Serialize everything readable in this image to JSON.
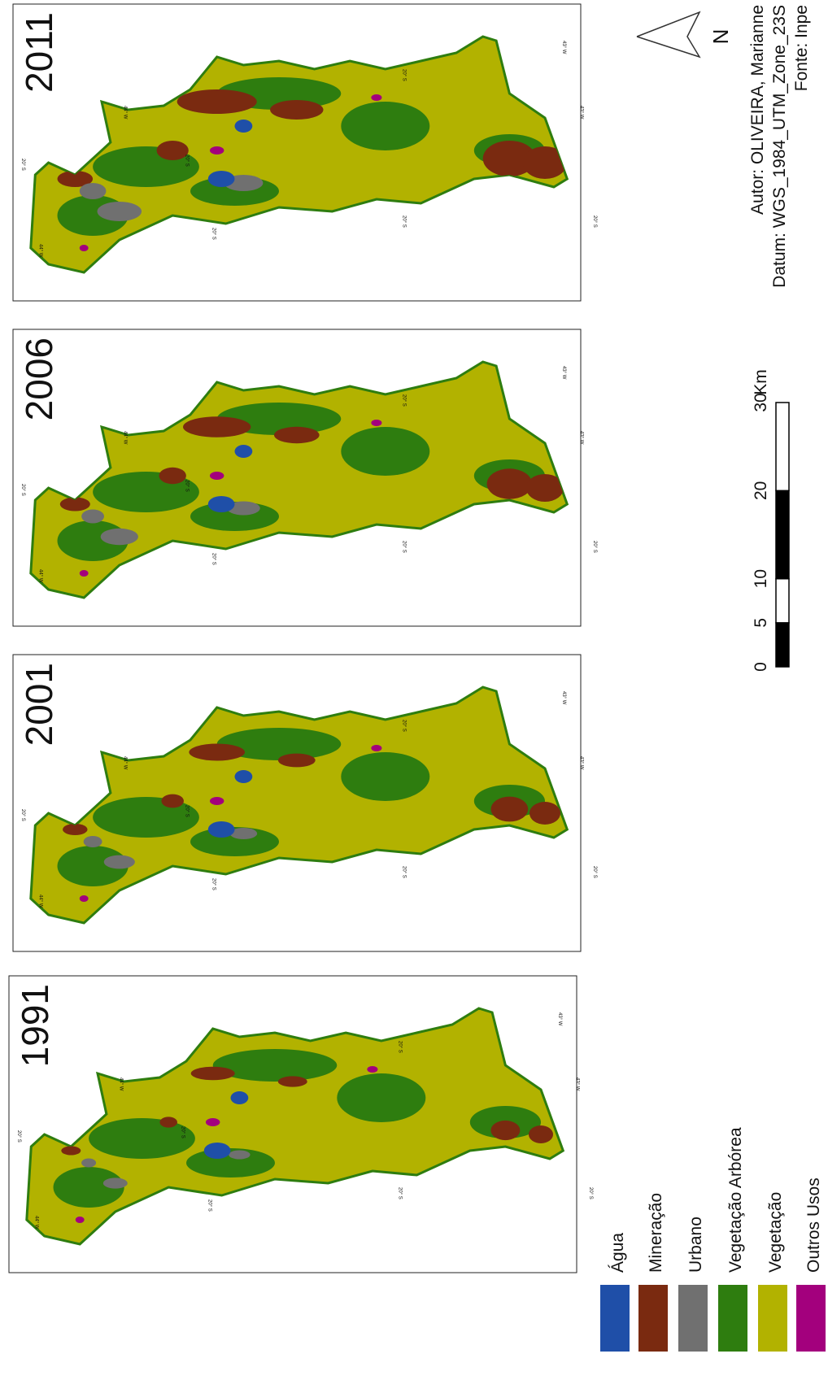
{
  "maps": [
    {
      "year": "2011"
    },
    {
      "year": "2006"
    },
    {
      "year": "2001"
    },
    {
      "year": "1991"
    }
  ],
  "coordinate_labels": {
    "lat": "20° S",
    "lon_west": "44° W",
    "lon_east": "43° W"
  },
  "legend": [
    {
      "label": "Água",
      "color": "#1f4fa8"
    },
    {
      "label": "Mineração",
      "color": "#7a2a10"
    },
    {
      "label": "Urbano",
      "color": "#707070"
    },
    {
      "label": "Vegetação Arbórea",
      "color": "#2e7d0f"
    },
    {
      "label": "Vegetação",
      "color": "#b2b200"
    },
    {
      "label": "Outros Usos",
      "color": "#a3007d"
    }
  ],
  "scale_bar": {
    "ticks": [
      0,
      5,
      10,
      20,
      30
    ],
    "unit": "Km"
  },
  "north": "N",
  "credits": [
    "Autor: OLIVEIRA, Marianne",
    "Datum: WGS_1984_UTM_Zone_23S",
    "Fonte: Inpe"
  ]
}
